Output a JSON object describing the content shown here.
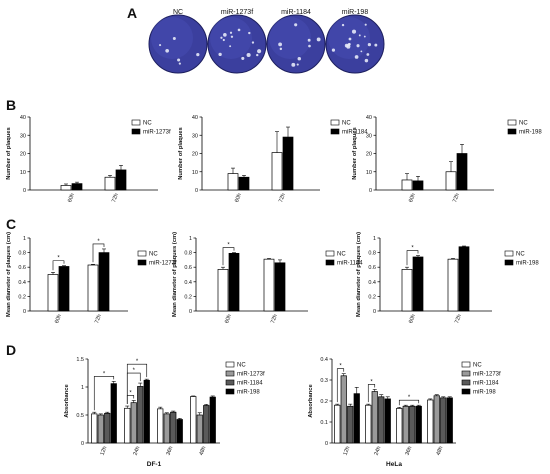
{
  "figure": {
    "panel_labels": [
      "A",
      "B",
      "C",
      "D"
    ]
  },
  "panel_a": {
    "plates": [
      {
        "label": "NC",
        "plaques": 6
      },
      {
        "label": "miR-1273f",
        "plaques": 14
      },
      {
        "label": "miR-1184",
        "plaques": 9
      },
      {
        "label": "miR-198",
        "plaques": 18
      }
    ],
    "plate_color": "#3b3f9e"
  },
  "colors": {
    "nc": "#ffffff",
    "mir1273f": "#9a9a9a",
    "mir1184": "#5a5a5a",
    "mir198": "#000000",
    "black_series": "#000000"
  },
  "chart_data": [
    {
      "id": "B1",
      "type": "bar",
      "categories": [
        "60h",
        "72h"
      ],
      "ylabel": "Number of plaques",
      "ylim": [
        0,
        40
      ],
      "yticks": [
        0,
        10,
        20,
        30,
        40
      ],
      "series": [
        {
          "name": "NC",
          "values": [
            2.5,
            7
          ],
          "errors": [
            0.8,
            1
          ],
          "color": "#ffffff"
        },
        {
          "name": "miR-1273f",
          "values": [
            3.5,
            11
          ],
          "errors": [
            0.8,
            2.5
          ],
          "color": "#000000"
        }
      ],
      "significance": []
    },
    {
      "id": "B2",
      "type": "bar",
      "categories": [
        "60h",
        "72h"
      ],
      "ylabel": "Number of plaques",
      "ylim": [
        0,
        40
      ],
      "yticks": [
        0,
        10,
        20,
        30,
        40
      ],
      "series": [
        {
          "name": "NC",
          "values": [
            9,
            20.5
          ],
          "errors": [
            3,
            11.5
          ],
          "color": "#ffffff"
        },
        {
          "name": "miR-1184",
          "values": [
            7,
            29
          ],
          "errors": [
            1,
            5.5
          ],
          "color": "#000000"
        }
      ],
      "significance": []
    },
    {
      "id": "B3",
      "type": "bar",
      "categories": [
        "60h",
        "72h"
      ],
      "ylabel": "Number of plaques",
      "ylim": [
        0,
        40
      ],
      "yticks": [
        0,
        10,
        20,
        30,
        40
      ],
      "series": [
        {
          "name": "NC",
          "values": [
            5.5,
            10
          ],
          "errors": [
            3.5,
            5.5
          ],
          "color": "#ffffff"
        },
        {
          "name": "miR-198",
          "values": [
            5,
            20
          ],
          "errors": [
            2.5,
            5
          ],
          "color": "#000000"
        }
      ],
      "significance": []
    },
    {
      "id": "C1",
      "type": "bar",
      "categories": [
        "60h",
        "72h"
      ],
      "ylabel": "Mean diameter of plaques (cm)",
      "ylim": [
        0,
        1.0
      ],
      "yticks": [
        0.0,
        0.2,
        0.4,
        0.6,
        0.8,
        1.0
      ],
      "series": [
        {
          "name": "NC",
          "values": [
            0.5,
            0.63
          ],
          "errors": [
            0.03,
            0.01
          ],
          "color": "#ffffff"
        },
        {
          "name": "miR-1273f",
          "values": [
            0.61,
            0.8
          ],
          "errors": [
            0.01,
            0.05
          ],
          "color": "#000000"
        }
      ],
      "significance": [
        {
          "group": 0,
          "from": 0,
          "to": 1,
          "label": "*"
        },
        {
          "group": 1,
          "from": 0,
          "to": 1,
          "label": "*"
        }
      ]
    },
    {
      "id": "C2",
      "type": "bar",
      "categories": [
        "60h",
        "72h"
      ],
      "ylabel": "Mean diameter of plaques (cm)",
      "ylim": [
        0,
        1.0
      ],
      "yticks": [
        0.0,
        0.2,
        0.4,
        0.6,
        0.8,
        1.0
      ],
      "series": [
        {
          "name": "NC",
          "values": [
            0.57,
            0.71
          ],
          "errors": [
            0.03,
            0.01
          ],
          "color": "#ffffff"
        },
        {
          "name": "miR-1184",
          "values": [
            0.79,
            0.66
          ],
          "errors": [
            0.01,
            0.04
          ],
          "color": "#000000"
        }
      ],
      "significance": [
        {
          "group": 0,
          "from": 0,
          "to": 1,
          "label": "*"
        }
      ]
    },
    {
      "id": "C3",
      "type": "bar",
      "categories": [
        "60h",
        "72h"
      ],
      "ylabel": "Mean diameter of plaques (cm)",
      "ylim": [
        0,
        1.0
      ],
      "yticks": [
        0.0,
        0.2,
        0.4,
        0.6,
        0.8,
        1.0
      ],
      "series": [
        {
          "name": "NC",
          "values": [
            0.57,
            0.71
          ],
          "errors": [
            0.03,
            0.01
          ],
          "color": "#ffffff"
        },
        {
          "name": "miR-198",
          "values": [
            0.74,
            0.88
          ],
          "errors": [
            0.02,
            0.01
          ],
          "color": "#000000"
        }
      ],
      "significance": [
        {
          "group": 0,
          "from": 0,
          "to": 1,
          "label": "*"
        }
      ]
    },
    {
      "id": "D1",
      "type": "bar",
      "categories": [
        "12h",
        "24h",
        "36h",
        "48h"
      ],
      "ylabel": "Absorbance",
      "xlabel": "DF-1",
      "ylim": [
        0,
        1.5
      ],
      "yticks": [
        0.0,
        0.5,
        1.0,
        1.5
      ],
      "series": [
        {
          "name": "NC",
          "values": [
            0.52,
            0.62,
            0.61,
            0.83
          ],
          "errors": [
            0.03,
            0.04,
            0.03,
            0.01
          ],
          "color": "#ffffff"
        },
        {
          "name": "miR-1273f",
          "values": [
            0.5,
            0.72,
            0.52,
            0.5
          ],
          "errors": [
            0.02,
            0.04,
            0.02,
            0.04
          ],
          "color": "#9a9a9a"
        },
        {
          "name": "miR-1184",
          "values": [
            0.53,
            1.01,
            0.55,
            0.67
          ],
          "errors": [
            0.02,
            0.06,
            0.02,
            0.02
          ],
          "color": "#5a5a5a"
        },
        {
          "name": "miR-198",
          "values": [
            1.06,
            1.12,
            0.42,
            0.82
          ],
          "errors": [
            0.04,
            0.02,
            0.02,
            0.02
          ],
          "color": "#000000"
        }
      ],
      "significance": [
        {
          "group": 0,
          "from": 0,
          "to": 3,
          "label": "*"
        },
        {
          "group": 1,
          "from": 0,
          "to": 1,
          "label": "*"
        },
        {
          "group": 1,
          "from": 0,
          "to": 2,
          "label": "*"
        },
        {
          "group": 1,
          "from": 0,
          "to": 3,
          "label": "*"
        }
      ]
    },
    {
      "id": "D2",
      "type": "bar",
      "categories": [
        "12h",
        "24h",
        "36h",
        "48h"
      ],
      "ylabel": "Absorbance",
      "xlabel": "HeLa",
      "ylim": [
        0,
        0.4
      ],
      "yticks": [
        0.0,
        0.1,
        0.2,
        0.3,
        0.4
      ],
      "series": [
        {
          "name": "NC",
          "values": [
            0.18,
            0.18,
            0.165,
            0.205
          ],
          "errors": [
            0.005,
            0.005,
            0.005,
            0.005
          ],
          "color": "#ffffff"
        },
        {
          "name": "miR-1273f",
          "values": [
            0.32,
            0.245,
            0.175,
            0.225
          ],
          "errors": [
            0.01,
            0.01,
            0.005,
            0.005
          ],
          "color": "#9a9a9a"
        },
        {
          "name": "miR-1184",
          "values": [
            0.175,
            0.22,
            0.175,
            0.215
          ],
          "errors": [
            0.01,
            0.01,
            0.005,
            0.005
          ],
          "color": "#5a5a5a"
        },
        {
          "name": "miR-198",
          "values": [
            0.235,
            0.21,
            0.175,
            0.215
          ],
          "errors": [
            0.03,
            0.01,
            0.005,
            0.005
          ],
          "color": "#000000"
        }
      ],
      "significance": [
        {
          "group": 0,
          "from": 0,
          "to": 1,
          "label": "*"
        },
        {
          "group": 1,
          "from": 0,
          "to": 1,
          "label": "*"
        },
        {
          "group": 2,
          "from": 0,
          "to": 3,
          "label": "*"
        }
      ]
    }
  ]
}
